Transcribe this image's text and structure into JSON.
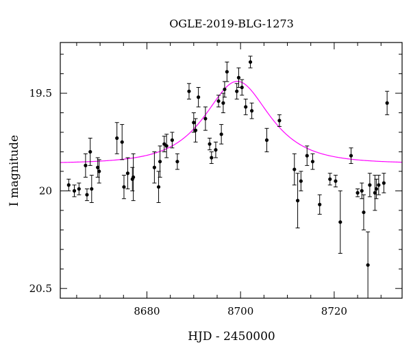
{
  "chart_data": {
    "type": "scatter",
    "title": "OGLE-2019-BLG-1273",
    "xlabel": "HJD - 2450000",
    "ylabel": "I magnitude",
    "xlim": [
      8661.5,
      8734.5
    ],
    "ylim": [
      20.55,
      19.24
    ],
    "y_inverted": true,
    "grid": false,
    "x_ticks": [
      8680,
      8700,
      8720
    ],
    "x_tick_labels": [
      "8680",
      "8700",
      "8720"
    ],
    "y_ticks": [
      19,
      19.5,
      20,
      20.5
    ],
    "y_tick_labels": [
      "19",
      "19.5",
      "20",
      "20.5"
    ],
    "colors": {
      "points": "#000000",
      "model": "#ff00ff"
    },
    "series": [
      {
        "type": "scatter_errorbar",
        "x": [
          8663.3,
          8664.5,
          8665.5,
          8666.9,
          8667.2,
          8667.9,
          8668.2,
          8669.5,
          8669.8,
          8673.6,
          8674.7,
          8675.1,
          8675.9,
          8676.9,
          8677.1,
          8681.6,
          8682.5,
          8682.8,
          8683.7,
          8684.2,
          8685.4,
          8686.5,
          8689.0,
          8690.0,
          8690.4,
          8691.0,
          8692.5,
          8693.4,
          8693.8,
          8694.7,
          8695.3,
          8695.9,
          8696.3,
          8696.6,
          8697.1,
          8699.2,
          8699.6,
          8700.3,
          8701.1,
          8702.1,
          8702.4,
          8705.6,
          8708.3,
          8711.5,
          8712.2,
          8712.9,
          8714.2,
          8715.4,
          8716.9,
          8719.1,
          8720.3,
          8721.3,
          8723.6,
          8725.0,
          8725.9,
          8726.3,
          8727.2,
          8727.6,
          8728.7,
          8729.0,
          8729.5,
          8730.6,
          8731.3
        ],
        "y": [
          19.97,
          20.0,
          19.99,
          19.87,
          20.02,
          19.8,
          19.99,
          19.88,
          19.9,
          19.73,
          19.75,
          19.98,
          19.91,
          19.94,
          19.93,
          19.88,
          19.98,
          19.85,
          19.76,
          19.77,
          19.74,
          19.85,
          19.49,
          19.65,
          19.69,
          19.52,
          19.63,
          19.76,
          19.83,
          19.79,
          19.54,
          19.71,
          19.55,
          19.48,
          19.39,
          19.49,
          19.42,
          19.47,
          19.57,
          19.34,
          19.59,
          19.74,
          19.64,
          19.89,
          20.05,
          19.95,
          19.82,
          19.85,
          20.07,
          19.94,
          19.95,
          20.16,
          19.82,
          20.01,
          20.0,
          20.11,
          20.38,
          19.97,
          20.01,
          19.99,
          19.97,
          19.96,
          19.55
        ],
        "err": [
          0.03,
          0.03,
          0.03,
          0.06,
          0.03,
          0.07,
          0.07,
          0.05,
          0.06,
          0.08,
          0.09,
          0.06,
          0.08,
          0.06,
          0.12,
          0.08,
          0.08,
          0.08,
          0.04,
          0.06,
          0.04,
          0.04,
          0.04,
          0.05,
          0.06,
          0.05,
          0.06,
          0.03,
          0.03,
          0.04,
          0.03,
          0.05,
          0.05,
          0.04,
          0.05,
          0.04,
          0.05,
          0.04,
          0.04,
          0.03,
          0.04,
          0.06,
          0.03,
          0.08,
          0.14,
          0.05,
          0.05,
          0.04,
          0.05,
          0.03,
          0.03,
          0.16,
          0.04,
          0.02,
          0.04,
          0.09,
          0.17,
          0.06,
          0.09,
          0.05,
          0.05,
          0.05,
          0.06
        ]
      },
      {
        "type": "line",
        "model": "pspl",
        "t0": 8699.3,
        "u0": 0.85,
        "tE": 9.0,
        "baseline": 19.86,
        "x_range": [
          8661.5,
          8734.5
        ]
      }
    ]
  }
}
